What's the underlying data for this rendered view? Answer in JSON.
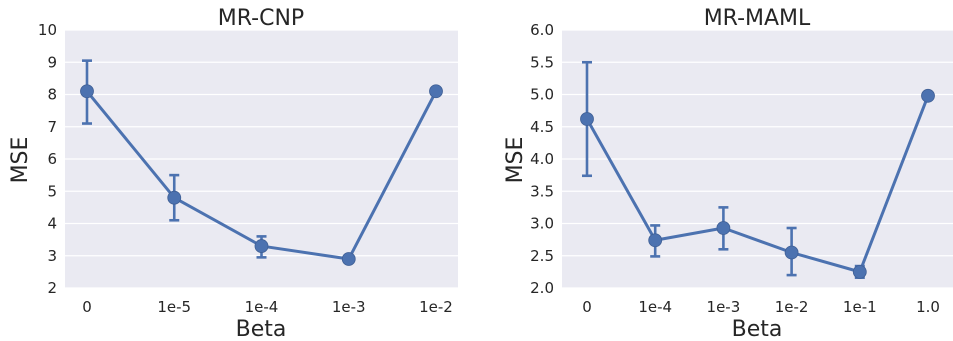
{
  "chart_data": [
    {
      "type": "line",
      "title": "MR-CNP",
      "xlabel": "Beta",
      "ylabel": "MSE",
      "categories": [
        "0",
        "1e-5",
        "1e-4",
        "1e-3",
        "1e-2"
      ],
      "values": [
        8.1,
        4.8,
        3.3,
        2.9,
        8.1
      ],
      "errors_low": [
        7.1,
        4.1,
        2.95,
        2.8,
        8.05
      ],
      "errors_high": [
        9.05,
        5.5,
        3.6,
        2.95,
        8.15
      ],
      "ylim": [
        2,
        10
      ],
      "yticks": [
        "2",
        "3",
        "4",
        "5",
        "6",
        "7",
        "8",
        "9",
        "10"
      ],
      "ytick_values": [
        2,
        3,
        4,
        5,
        6,
        7,
        8,
        9,
        10
      ],
      "grid": true,
      "color": "#4c72b0"
    },
    {
      "type": "line",
      "title": "MR-MAML",
      "xlabel": "Beta",
      "ylabel": "MSE",
      "categories": [
        "0",
        "1e-4",
        "1e-3",
        "1e-2",
        "1e-1",
        "1.0"
      ],
      "values": [
        4.62,
        2.74,
        2.93,
        2.55,
        2.25,
        4.98
      ],
      "errors_low": [
        3.74,
        2.49,
        2.6,
        2.2,
        2.16,
        4.94
      ],
      "errors_high": [
        5.5,
        2.97,
        3.25,
        2.93,
        2.34,
        5.02
      ],
      "ylim": [
        2.0,
        6.0
      ],
      "yticks": [
        "2.0",
        "2.5",
        "3.0",
        "3.5",
        "4.0",
        "4.5",
        "5.0",
        "5.5",
        "6.0"
      ],
      "ytick_values": [
        2.0,
        2.5,
        3.0,
        3.5,
        4.0,
        4.5,
        5.0,
        5.5,
        6.0
      ],
      "grid": true,
      "color": "#4c72b0"
    }
  ]
}
